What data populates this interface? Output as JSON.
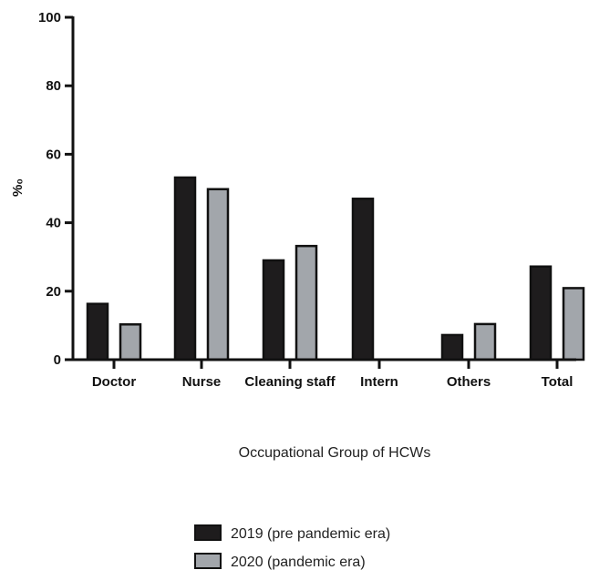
{
  "chart_data": {
    "type": "bar",
    "title": "",
    "xlabel": "Occupational Group of HCWs",
    "ylabel": "%₀",
    "ylim": [
      0,
      100
    ],
    "yticks": [
      "0",
      "20",
      "40",
      "60",
      "80",
      "100"
    ],
    "categories": [
      "Doctor",
      "Nurse",
      "Cleaning staff",
      "Intern",
      "Others",
      "Total"
    ],
    "series": [
      {
        "name": "2019 (pre pandemic era)",
        "color": "#1e1c1d",
        "values": [
          16.3,
          53.2,
          29.0,
          47.0,
          7.2,
          27.2
        ]
      },
      {
        "name": "2020 (pandemic era)",
        "color": "#a2a6ab",
        "values": [
          10.3,
          49.8,
          33.2,
          0,
          10.4,
          20.9
        ]
      }
    ],
    "grid": false,
    "legend_position": "bottom-center"
  }
}
